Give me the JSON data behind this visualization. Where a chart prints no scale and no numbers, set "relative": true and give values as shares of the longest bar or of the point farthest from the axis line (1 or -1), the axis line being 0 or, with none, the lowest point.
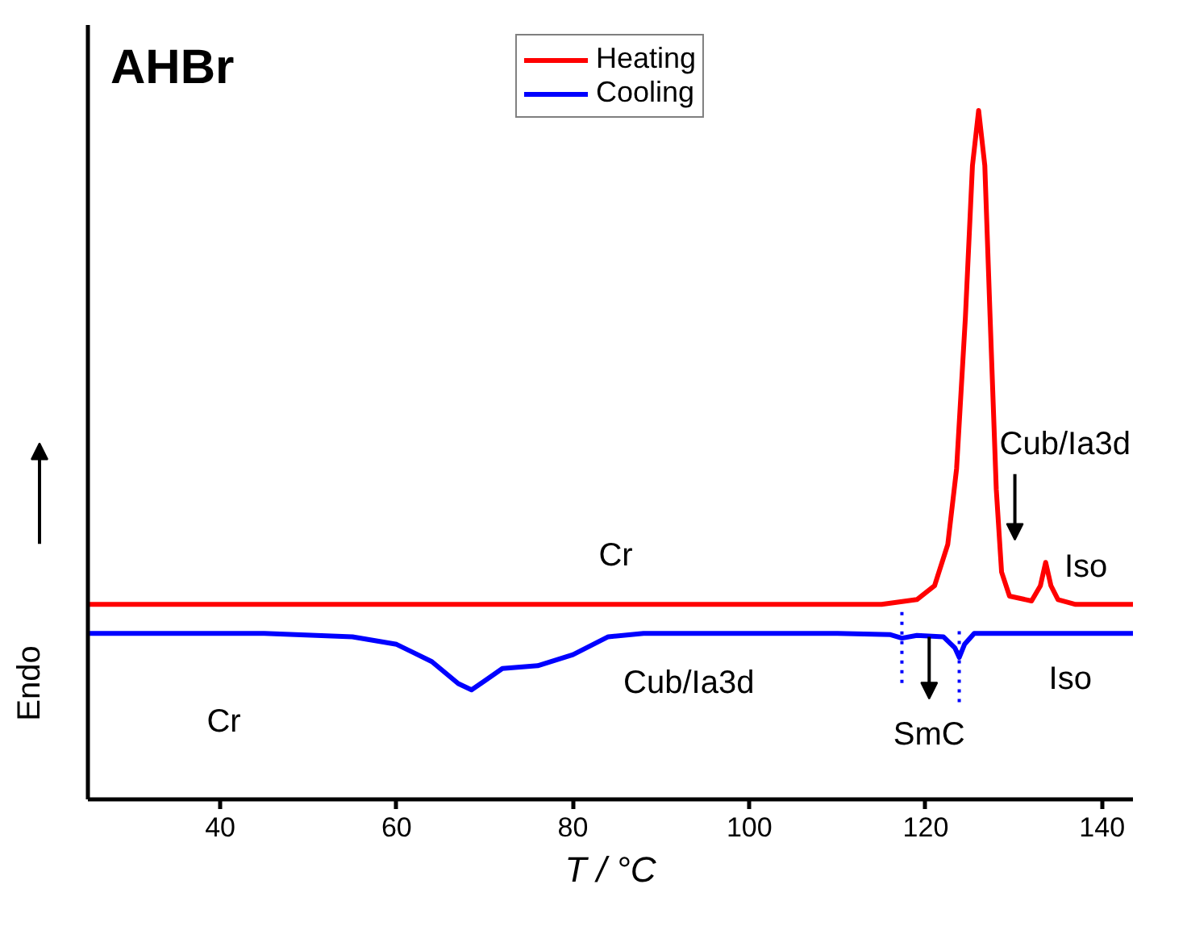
{
  "chart_data": {
    "type": "line",
    "title": "AHBr",
    "xlabel": "T / °C",
    "ylabel": "Endo",
    "relative": true,
    "xlim": [
      25,
      143.5
    ],
    "xticks": [
      40,
      60,
      80,
      100,
      120,
      140
    ],
    "x": [
      25,
      45,
      55,
      60,
      64,
      67,
      68.5,
      70,
      72,
      76,
      80,
      84,
      88,
      110,
      116,
      117.3,
      119,
      122,
      123.3,
      123.8,
      124.4,
      125.5,
      143.5
    ],
    "series": [
      {
        "name": "Heating",
        "color": "#ff0000",
        "x": [
          25,
          115,
          119,
          121,
          122.5,
          123.5,
          124.5,
          125.3,
          126,
          126.7,
          127.3,
          128,
          128.6,
          129.5,
          132,
          133,
          133.6,
          134.2,
          135,
          137,
          143.5
        ],
        "values": [
          0.283,
          0.283,
          0.29,
          0.31,
          0.37,
          0.48,
          0.7,
          0.92,
          1.0,
          0.92,
          0.7,
          0.45,
          0.33,
          0.295,
          0.288,
          0.31,
          0.344,
          0.31,
          0.29,
          0.283,
          0.283
        ]
      },
      {
        "name": "Cooling",
        "color": "#0000ff",
        "values": [
          0.241,
          0.241,
          0.236,
          0.225,
          0.2,
          0.168,
          0.159,
          0.172,
          0.19,
          0.194,
          0.21,
          0.236,
          0.241,
          0.241,
          0.239,
          0.234,
          0.238,
          0.236,
          0.22,
          0.206,
          0.225,
          0.241,
          0.241
        ]
      }
    ],
    "ref_lines": [
      {
        "axis": "x",
        "value": 117.3,
        "color": "#0000ff",
        "line_style": "dotted"
      },
      {
        "axis": "x",
        "value": 123.8,
        "color": "#0000ff",
        "line_style": "dotted"
      }
    ],
    "annotations": [
      "Cr",
      "Cub/Ia3d",
      "Iso",
      "Cr",
      "Cub/Ia3d",
      "SmC",
      "Iso"
    ],
    "legend": "top",
    "grid": false,
    "line_style": "solid",
    "marker": "none"
  }
}
